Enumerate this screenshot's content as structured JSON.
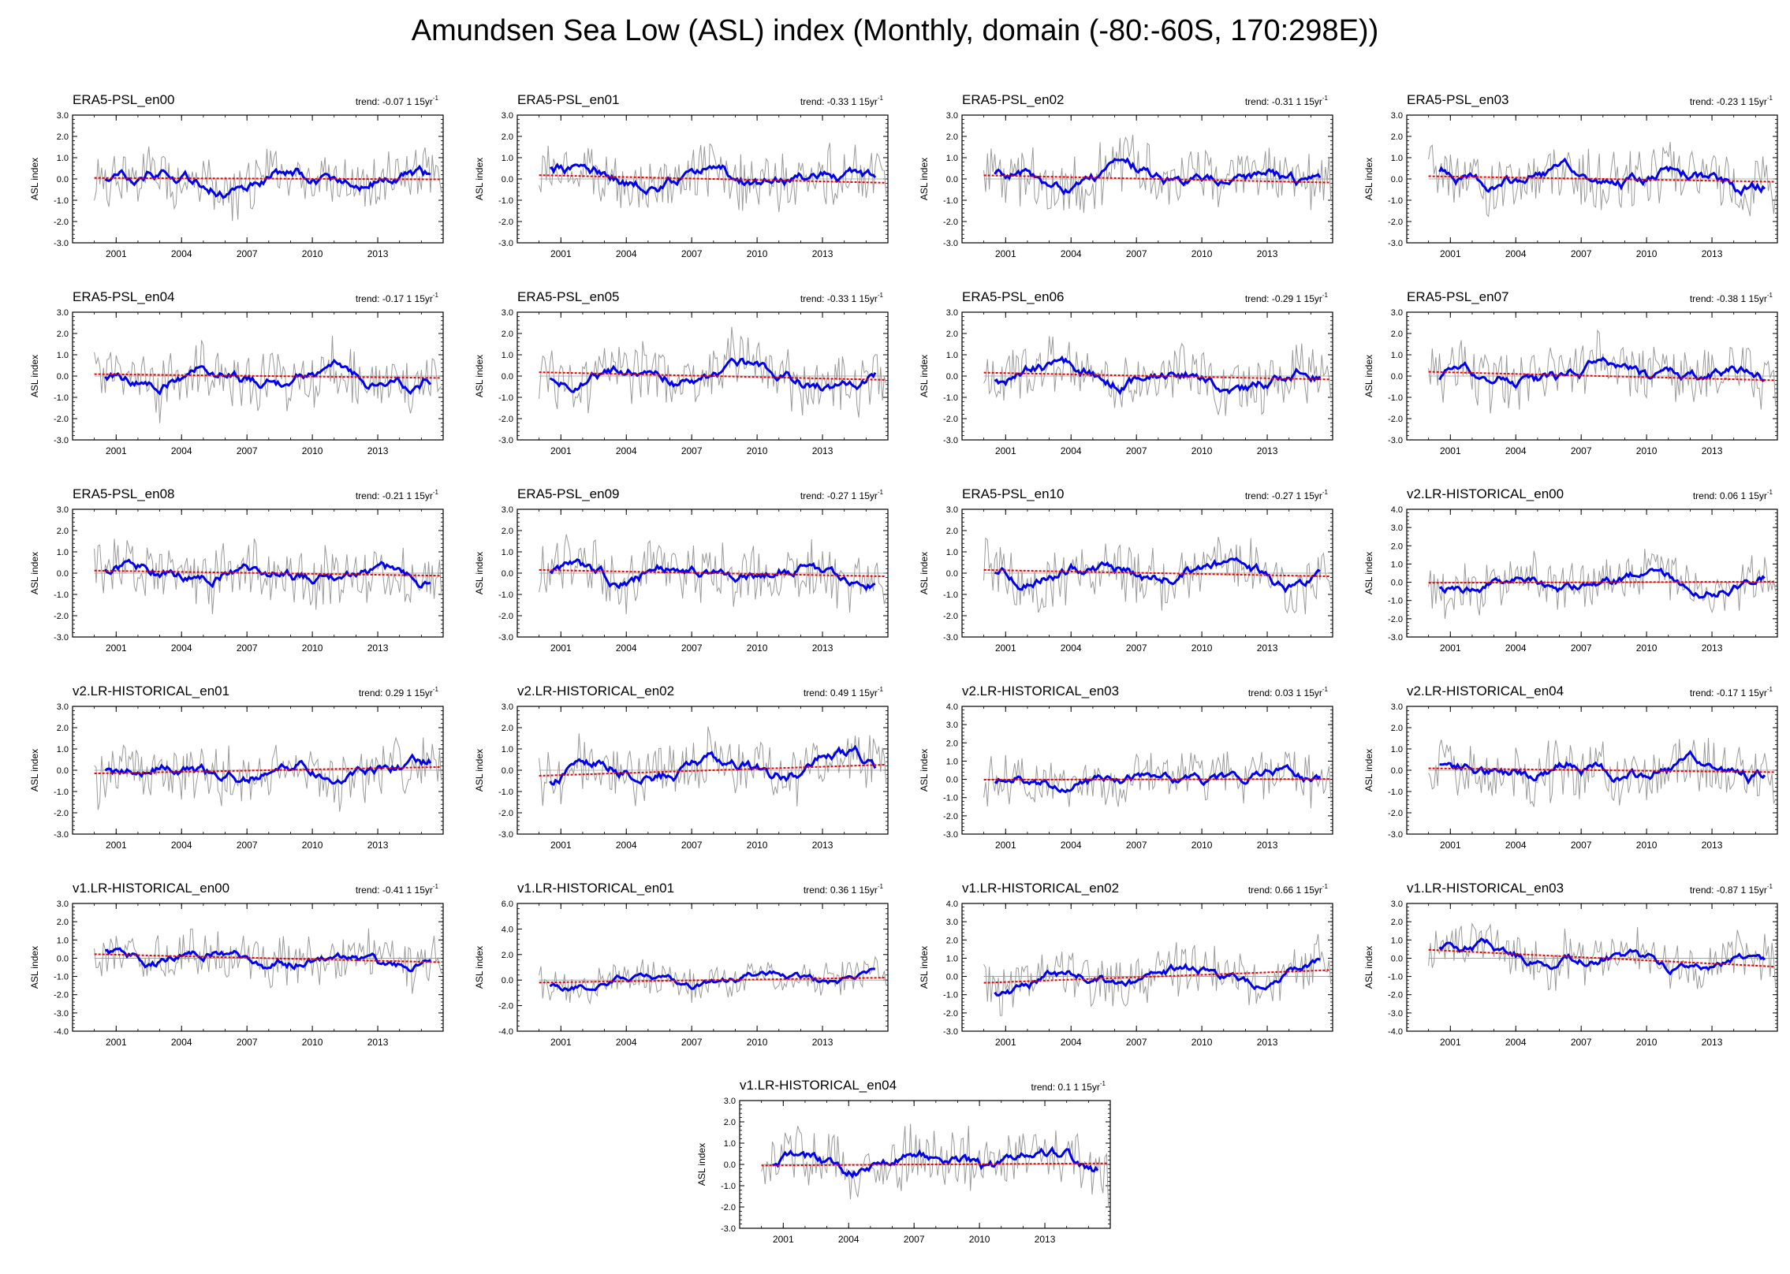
{
  "figure": {
    "title": "Amundsen Sea Low (ASL) index (Monthly, domain (-80:-60S, 170:298E))",
    "colors": {
      "raw": "#9a9a9a",
      "smooth": "#0000ee",
      "trend": "#ee0000",
      "zero": "#9a9a9a"
    }
  },
  "chart_data": [
    {
      "type": "line",
      "title": "ERA5-PSL_en00",
      "trend_label": "trend: -0.07 1 15yr",
      "trend_sup": "-1",
      "ylabel": "ASL index",
      "ylim": [
        -3.0,
        3.0
      ],
      "yticks": [
        "3.0",
        "2.0",
        "1.0",
        "0.0",
        "-1.0",
        "-2.0",
        "-3.0"
      ],
      "xlim": [
        1999,
        2016
      ],
      "xticks": [
        "2001",
        "2004",
        "2007",
        "2010",
        "2013"
      ],
      "trend_line": {
        "start": 0.05,
        "end": -0.02
      },
      "seed": 11,
      "amp": 0.55
    },
    {
      "type": "line",
      "title": "ERA5-PSL_en01",
      "trend_label": "trend: -0.33 1 15yr",
      "trend_sup": "-1",
      "ylabel": "ASL index",
      "ylim": [
        -3.0,
        3.0
      ],
      "yticks": [
        "3.0",
        "2.0",
        "1.0",
        "0.0",
        "-1.0",
        "-2.0",
        "-3.0"
      ],
      "xlim": [
        1999,
        2016
      ],
      "xticks": [
        "2001",
        "2004",
        "2007",
        "2010",
        "2013"
      ],
      "trend_line": {
        "start": 0.18,
        "end": -0.18
      },
      "seed": 12,
      "amp": 0.55
    },
    {
      "type": "line",
      "title": "ERA5-PSL_en02",
      "trend_label": "trend: -0.31 1 15yr",
      "trend_sup": "-1",
      "ylabel": "ASL index",
      "ylim": [
        -3.0,
        3.0
      ],
      "yticks": [
        "3.0",
        "2.0",
        "1.0",
        "0.0",
        "-1.0",
        "-2.0",
        "-3.0"
      ],
      "xlim": [
        1999,
        2016
      ],
      "xticks": [
        "2001",
        "2004",
        "2007",
        "2010",
        "2013"
      ],
      "trend_line": {
        "start": 0.17,
        "end": -0.17
      },
      "seed": 13,
      "amp": 0.55
    },
    {
      "type": "line",
      "title": "ERA5-PSL_en03",
      "trend_label": "trend: -0.23 1 15yr",
      "trend_sup": "-1",
      "ylabel": "ASL index",
      "ylim": [
        -3.0,
        3.0
      ],
      "yticks": [
        "3.0",
        "2.0",
        "1.0",
        "0.0",
        "-1.0",
        "-2.0",
        "-3.0"
      ],
      "xlim": [
        1999,
        2016
      ],
      "xticks": [
        "2001",
        "2004",
        "2007",
        "2010",
        "2013"
      ],
      "trend_line": {
        "start": 0.13,
        "end": -0.13
      },
      "seed": 14,
      "amp": 0.55
    },
    {
      "type": "line",
      "title": "ERA5-PSL_en04",
      "trend_label": "trend: -0.17 1 15yr",
      "trend_sup": "-1",
      "ylabel": "ASL index",
      "ylim": [
        -3.0,
        3.0
      ],
      "yticks": [
        "3.0",
        "2.0",
        "1.0",
        "0.0",
        "-1.0",
        "-2.0",
        "-3.0"
      ],
      "xlim": [
        1999,
        2016
      ],
      "xticks": [
        "2001",
        "2004",
        "2007",
        "2010",
        "2013"
      ],
      "trend_line": {
        "start": 0.09,
        "end": -0.09
      },
      "seed": 15,
      "amp": 0.55
    },
    {
      "type": "line",
      "title": "ERA5-PSL_en05",
      "trend_label": "trend: -0.33 1 15yr",
      "trend_sup": "-1",
      "ylabel": "ASL index",
      "ylim": [
        -3.0,
        3.0
      ],
      "yticks": [
        "3.0",
        "2.0",
        "1.0",
        "0.0",
        "-1.0",
        "-2.0",
        "-3.0"
      ],
      "xlim": [
        1999,
        2016
      ],
      "xticks": [
        "2001",
        "2004",
        "2007",
        "2010",
        "2013"
      ],
      "trend_line": {
        "start": 0.18,
        "end": -0.18
      },
      "seed": 16,
      "amp": 0.55
    },
    {
      "type": "line",
      "title": "ERA5-PSL_en06",
      "trend_label": "trend: -0.29 1 15yr",
      "trend_sup": "-1",
      "ylabel": "ASL index",
      "ylim": [
        -3.0,
        3.0
      ],
      "yticks": [
        "3.0",
        "2.0",
        "1.0",
        "0.0",
        "-1.0",
        "-2.0",
        "-3.0"
      ],
      "xlim": [
        1999,
        2016
      ],
      "xticks": [
        "2001",
        "2004",
        "2007",
        "2010",
        "2013"
      ],
      "trend_line": {
        "start": 0.16,
        "end": -0.16
      },
      "seed": 17,
      "amp": 0.55
    },
    {
      "type": "line",
      "title": "ERA5-PSL_en07",
      "trend_label": "trend: -0.38 1 15yr",
      "trend_sup": "-1",
      "ylabel": "ASL index",
      "ylim": [
        -3.0,
        3.0
      ],
      "yticks": [
        "3.0",
        "2.0",
        "1.0",
        "0.0",
        "-1.0",
        "-2.0",
        "-3.0"
      ],
      "xlim": [
        1999,
        2016
      ],
      "xticks": [
        "2001",
        "2004",
        "2007",
        "2010",
        "2013"
      ],
      "trend_line": {
        "start": 0.2,
        "end": -0.2
      },
      "seed": 18,
      "amp": 0.55
    },
    {
      "type": "line",
      "title": "ERA5-PSL_en08",
      "trend_label": "trend: -0.21 1 15yr",
      "trend_sup": "-1",
      "ylabel": "ASL index",
      "ylim": [
        -3.0,
        3.0
      ],
      "yticks": [
        "3.0",
        "2.0",
        "1.0",
        "0.0",
        "-1.0",
        "-2.0",
        "-3.0"
      ],
      "xlim": [
        1999,
        2016
      ],
      "xticks": [
        "2001",
        "2004",
        "2007",
        "2010",
        "2013"
      ],
      "trend_line": {
        "start": 0.12,
        "end": -0.12
      },
      "seed": 19,
      "amp": 0.55
    },
    {
      "type": "line",
      "title": "ERA5-PSL_en09",
      "trend_label": "trend: -0.27 1 15yr",
      "trend_sup": "-1",
      "ylabel": "ASL index",
      "ylim": [
        -3.0,
        3.0
      ],
      "yticks": [
        "3.0",
        "2.0",
        "1.0",
        "0.0",
        "-1.0",
        "-2.0",
        "-3.0"
      ],
      "xlim": [
        1999,
        2016
      ],
      "xticks": [
        "2001",
        "2004",
        "2007",
        "2010",
        "2013"
      ],
      "trend_line": {
        "start": 0.15,
        "end": -0.15
      },
      "seed": 20,
      "amp": 0.55
    },
    {
      "type": "line",
      "title": "ERA5-PSL_en10",
      "trend_label": "trend: -0.27 1 15yr",
      "trend_sup": "-1",
      "ylabel": "ASL index",
      "ylim": [
        -3.0,
        3.0
      ],
      "yticks": [
        "3.0",
        "2.0",
        "1.0",
        "0.0",
        "-1.0",
        "-2.0",
        "-3.0"
      ],
      "xlim": [
        1999,
        2016
      ],
      "xticks": [
        "2001",
        "2004",
        "2007",
        "2010",
        "2013"
      ],
      "trend_line": {
        "start": 0.15,
        "end": -0.15
      },
      "seed": 21,
      "amp": 0.55
    },
    {
      "type": "line",
      "title": "v2.LR-HISTORICAL_en00",
      "trend_label": "trend: 0.06 1 15yr",
      "trend_sup": "-1",
      "ylabel": "ASL index",
      "ylim": [
        -3.0,
        4.0
      ],
      "yticks": [
        "4.0",
        "3.0",
        "2.0",
        "1.0",
        "0.0",
        "-1.0",
        "-2.0",
        "-3.0"
      ],
      "xlim": [
        1999,
        2016
      ],
      "xticks": [
        "2001",
        "2004",
        "2007",
        "2010",
        "2013"
      ],
      "trend_line": {
        "start": -0.03,
        "end": 0.03
      },
      "seed": 22,
      "amp": 0.5
    },
    {
      "type": "line",
      "title": "v2.LR-HISTORICAL_en01",
      "trend_label": "trend: 0.29 1 15yr",
      "trend_sup": "-1",
      "ylabel": "ASL index",
      "ylim": [
        -3.0,
        3.0
      ],
      "yticks": [
        "3.0",
        "2.0",
        "1.0",
        "0.0",
        "-1.0",
        "-2.0",
        "-3.0"
      ],
      "xlim": [
        1999,
        2016
      ],
      "xticks": [
        "2001",
        "2004",
        "2007",
        "2010",
        "2013"
      ],
      "trend_line": {
        "start": -0.15,
        "end": 0.15
      },
      "seed": 23,
      "amp": 0.55
    },
    {
      "type": "line",
      "title": "v2.LR-HISTORICAL_en02",
      "trend_label": "trend: 0.49 1 15yr",
      "trend_sup": "-1",
      "ylabel": "ASL index",
      "ylim": [
        -3.0,
        3.0
      ],
      "yticks": [
        "3.0",
        "2.0",
        "1.0",
        "0.0",
        "-1.0",
        "-2.0",
        "-3.0"
      ],
      "xlim": [
        1999,
        2016
      ],
      "xticks": [
        "2001",
        "2004",
        "2007",
        "2010",
        "2013"
      ],
      "trend_line": {
        "start": -0.26,
        "end": 0.26
      },
      "seed": 24,
      "amp": 0.55
    },
    {
      "type": "line",
      "title": "v2.LR-HISTORICAL_en03",
      "trend_label": "trend: 0.03 1 15yr",
      "trend_sup": "-1",
      "ylabel": "ASL index",
      "ylim": [
        -3.0,
        4.0
      ],
      "yticks": [
        "4.0",
        "3.0",
        "2.0",
        "1.0",
        "0.0",
        "-1.0",
        "-2.0",
        "-3.0"
      ],
      "xlim": [
        1999,
        2016
      ],
      "xticks": [
        "2001",
        "2004",
        "2007",
        "2010",
        "2013"
      ],
      "trend_line": {
        "start": -0.02,
        "end": 0.02
      },
      "seed": 25,
      "amp": 0.45
    },
    {
      "type": "line",
      "title": "v2.LR-HISTORICAL_en04",
      "trend_label": "trend: -0.17 1 15yr",
      "trend_sup": "-1",
      "ylabel": "ASL index",
      "ylim": [
        -3.0,
        3.0
      ],
      "yticks": [
        "3.0",
        "2.0",
        "1.0",
        "0.0",
        "-1.0",
        "-2.0",
        "-3.0"
      ],
      "xlim": [
        1999,
        2016
      ],
      "xticks": [
        "2001",
        "2004",
        "2007",
        "2010",
        "2013"
      ],
      "trend_line": {
        "start": 0.09,
        "end": -0.09
      },
      "seed": 26,
      "amp": 0.5
    },
    {
      "type": "line",
      "title": "v1.LR-HISTORICAL_en00",
      "trend_label": "trend: -0.41 1 15yr",
      "trend_sup": "-1",
      "ylabel": "ASL index",
      "ylim": [
        -4.0,
        3.0
      ],
      "yticks": [
        "3.0",
        "2.0",
        "1.0",
        "0.0",
        "-1.0",
        "-2.0",
        "-3.0",
        "-4.0"
      ],
      "xlim": [
        1999,
        2016
      ],
      "xticks": [
        "2001",
        "2004",
        "2007",
        "2010",
        "2013"
      ],
      "trend_line": {
        "start": 0.22,
        "end": -0.22
      },
      "seed": 27,
      "amp": 0.5
    },
    {
      "type": "line",
      "title": "v1.LR-HISTORICAL_en01",
      "trend_label": "trend: 0.36 1 15yr",
      "trend_sup": "-1",
      "ylabel": "ASL index",
      "ylim": [
        -4.0,
        6.0
      ],
      "yticks": [
        "6.0",
        "4.0",
        "2.0",
        "0.0",
        "-2.0",
        "-4.0"
      ],
      "xlim": [
        1999,
        2016
      ],
      "xticks": [
        "2001",
        "2004",
        "2007",
        "2010",
        "2013"
      ],
      "trend_line": {
        "start": -0.19,
        "end": 0.19
      },
      "seed": 28,
      "amp": 0.55
    },
    {
      "type": "line",
      "title": "v1.LR-HISTORICAL_en02",
      "trend_label": "trend: 0.66 1 15yr",
      "trend_sup": "-1",
      "ylabel": "ASL index",
      "ylim": [
        -3.0,
        4.0
      ],
      "yticks": [
        "4.0",
        "3.0",
        "2.0",
        "1.0",
        "0.0",
        "-1.0",
        "-2.0",
        "-3.0"
      ],
      "xlim": [
        1999,
        2016
      ],
      "xticks": [
        "2001",
        "2004",
        "2007",
        "2010",
        "2013"
      ],
      "trend_line": {
        "start": -0.35,
        "end": 0.35
      },
      "seed": 29,
      "amp": 0.55
    },
    {
      "type": "line",
      "title": "v1.LR-HISTORICAL_en03",
      "trend_label": "trend: -0.87 1 15yr",
      "trend_sup": "-1",
      "ylabel": "ASL index",
      "ylim": [
        -4.0,
        3.0
      ],
      "yticks": [
        "3.0",
        "2.0",
        "1.0",
        "0.0",
        "-1.0",
        "-2.0",
        "-3.0",
        "-4.0"
      ],
      "xlim": [
        1999,
        2016
      ],
      "xticks": [
        "2001",
        "2004",
        "2007",
        "2010",
        "2013"
      ],
      "trend_line": {
        "start": 0.46,
        "end": -0.46
      },
      "seed": 30,
      "amp": 0.5
    },
    {
      "type": "line",
      "title": "v1.LR-HISTORICAL_en04",
      "trend_label": "trend: 0.1 1 15yr",
      "trend_sup": "-1",
      "ylabel": "ASL index",
      "ylim": [
        -3.0,
        3.0
      ],
      "yticks": [
        "3.0",
        "2.0",
        "1.0",
        "0.0",
        "-1.0",
        "-2.0",
        "-3.0"
      ],
      "xlim": [
        1999,
        2016
      ],
      "xticks": [
        "2001",
        "2004",
        "2007",
        "2010",
        "2013"
      ],
      "trend_line": {
        "start": -0.05,
        "end": 0.05
      },
      "seed": 31,
      "amp": 0.5
    }
  ]
}
